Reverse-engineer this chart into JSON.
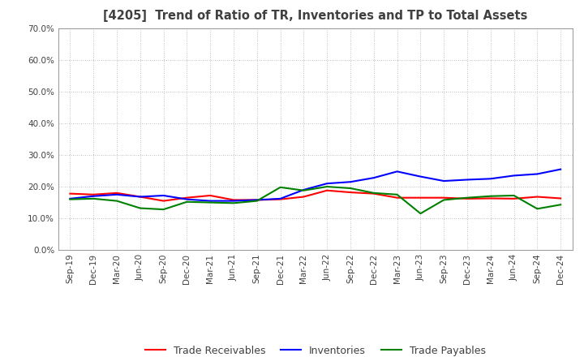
{
  "title": "[4205]  Trend of Ratio of TR, Inventories and TP to Total Assets",
  "x_labels": [
    "Sep-19",
    "Dec-19",
    "Mar-20",
    "Jun-20",
    "Sep-20",
    "Dec-20",
    "Mar-21",
    "Jun-21",
    "Sep-21",
    "Dec-21",
    "Mar-22",
    "Jun-22",
    "Sep-22",
    "Dec-22",
    "Mar-23",
    "Jun-23",
    "Sep-23",
    "Dec-23",
    "Mar-24",
    "Jun-24",
    "Sep-24",
    "Dec-24"
  ],
  "trade_receivables": [
    0.178,
    0.175,
    0.18,
    0.168,
    0.155,
    0.165,
    0.172,
    0.158,
    0.158,
    0.16,
    0.168,
    0.188,
    0.182,
    0.178,
    0.165,
    0.165,
    0.165,
    0.162,
    0.163,
    0.162,
    0.168,
    0.163
  ],
  "inventories": [
    0.162,
    0.17,
    0.175,
    0.168,
    0.172,
    0.16,
    0.155,
    0.155,
    0.158,
    0.162,
    0.19,
    0.21,
    0.215,
    0.228,
    0.248,
    0.232,
    0.218,
    0.222,
    0.225,
    0.235,
    0.24,
    0.255
  ],
  "trade_payables": [
    0.16,
    0.162,
    0.155,
    0.132,
    0.128,
    0.152,
    0.15,
    0.148,
    0.155,
    0.198,
    0.188,
    0.2,
    0.195,
    0.18,
    0.175,
    0.115,
    0.158,
    0.165,
    0.17,
    0.172,
    0.13,
    0.143
  ],
  "tr_color": "#FF0000",
  "inv_color": "#0000FF",
  "tp_color": "#008000",
  "ylim": [
    0.0,
    0.7
  ],
  "yticks": [
    0.0,
    0.1,
    0.2,
    0.3,
    0.4,
    0.5,
    0.6,
    0.7
  ],
  "line_width": 1.5,
  "bg_color": "#FFFFFF",
  "plot_bg_color": "#FFFFFF",
  "title_color": "#404040",
  "legend_labels": [
    "Trade Receivables",
    "Inventories",
    "Trade Payables"
  ]
}
